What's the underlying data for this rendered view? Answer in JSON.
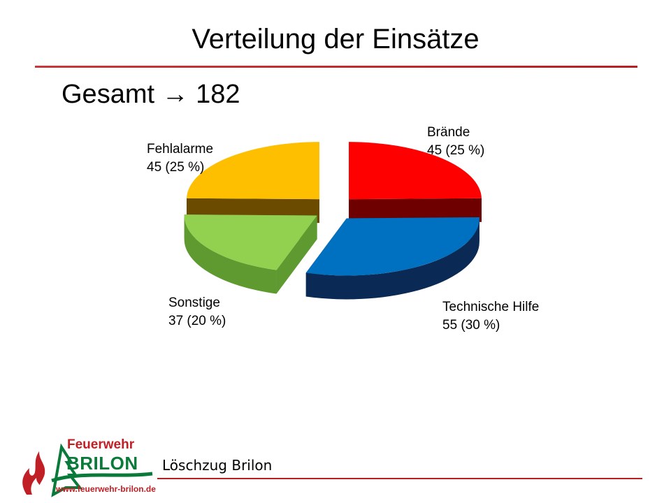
{
  "title": "Verteilung der Einsätze",
  "subtitle": "Gesamt → 182",
  "chart_data": {
    "type": "pie",
    "total": 182,
    "slices": [
      {
        "name": "Brände",
        "value": 45,
        "percent_label": "45 (25 %)",
        "color": "#ff0000",
        "side_color": "#6e0000"
      },
      {
        "name": "Technische Hilfe",
        "value": 55,
        "percent_label": "55 (30 %)",
        "color": "#0070c0",
        "side_color": "#0a2a55"
      },
      {
        "name": "Sonstige",
        "value": 37,
        "percent_label": "37 (20 %)",
        "color": "#92d050",
        "side_color": "#5e9a30"
      },
      {
        "name": "Fehlalarme",
        "value": 45,
        "percent_label": "45 (25 %)",
        "color": "#fdbf00",
        "side_color": "#6b4b00"
      }
    ]
  },
  "footer": {
    "text": "Löschzug Brilon",
    "logo_name": "Feuerwehr",
    "logo_city": "BRILON",
    "logo_url": "www.feuerwehr-brilon.de"
  }
}
